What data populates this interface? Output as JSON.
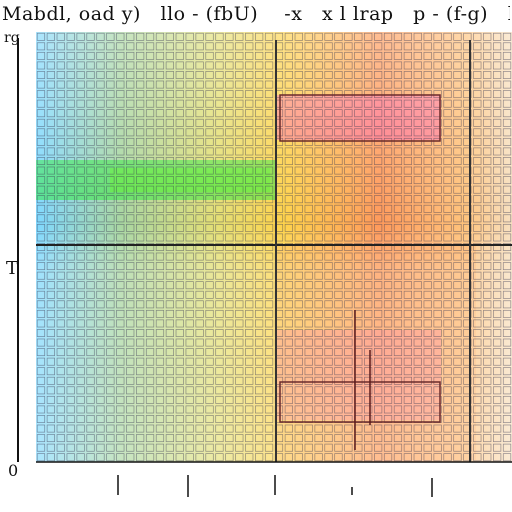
{
  "chart_data": {
    "type": "heatmap",
    "title": "Mabdl, oad y)   llo - (fbU)    -x   x l lrap   p - (f-g)   l",
    "yticks": [
      "rg",
      "T",
      "0"
    ],
    "grid": true,
    "cell_grid": {
      "cols": 48,
      "rows": 45
    },
    "color_regions": [
      {
        "region": "left",
        "colors": [
          "#7fd8ff",
          "#9ad98a",
          "#c8c8c8",
          "#e6e06a"
        ]
      },
      {
        "region": "center-band",
        "colors": [
          "#2ee63a",
          "#9be040"
        ]
      },
      {
        "region": "upper-right",
        "colors": [
          "#ffd34a",
          "#ff9a4a",
          "#ff5a9a",
          "#ff3cc8"
        ]
      },
      {
        "region": "lower-right",
        "colors": [
          "#ffb84a",
          "#ff8a50",
          "#e84aa0"
        ]
      },
      {
        "region": "right-edge",
        "colors": [
          "#ffffff",
          "#ffc890"
        ]
      }
    ]
  }
}
